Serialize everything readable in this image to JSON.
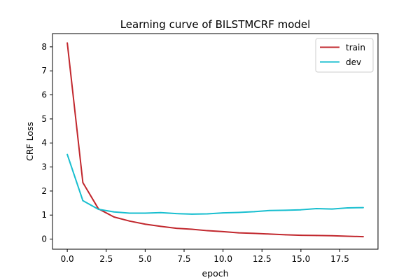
{
  "chart_data": {
    "type": "line",
    "title": "Learning curve of BILSTMCRF model",
    "xlabel": "epoch",
    "ylabel": "CRF Loss",
    "xlim": [
      -0.95,
      19.95
    ],
    "ylim": [
      -0.42,
      8.55
    ],
    "xticks": [
      0.0,
      2.5,
      5.0,
      7.5,
      10.0,
      12.5,
      15.0,
      17.5
    ],
    "xtick_labels": [
      "0.0",
      "2.5",
      "5.0",
      "7.5",
      "10.0",
      "12.5",
      "15.0",
      "17.5"
    ],
    "yticks": [
      0,
      1,
      2,
      3,
      4,
      5,
      6,
      7,
      8
    ],
    "ytick_labels": [
      "0",
      "1",
      "2",
      "3",
      "4",
      "5",
      "6",
      "7",
      "8"
    ],
    "grid": false,
    "legend_position": "top-right",
    "x": [
      0,
      1,
      2,
      3,
      4,
      5,
      6,
      7,
      8,
      9,
      10,
      11,
      12,
      13,
      14,
      15,
      16,
      17,
      18,
      19
    ],
    "series": [
      {
        "name": "train",
        "color": "#c1272d",
        "values": [
          8.16,
          2.35,
          1.26,
          0.92,
          0.75,
          0.62,
          0.53,
          0.45,
          0.41,
          0.35,
          0.31,
          0.26,
          0.24,
          0.21,
          0.18,
          0.16,
          0.15,
          0.14,
          0.12,
          0.1
        ]
      },
      {
        "name": "dev",
        "color": "#17becf",
        "values": [
          3.52,
          1.6,
          1.24,
          1.13,
          1.08,
          1.08,
          1.1,
          1.06,
          1.04,
          1.05,
          1.09,
          1.11,
          1.14,
          1.19,
          1.2,
          1.22,
          1.27,
          1.25,
          1.3,
          1.31
        ]
      }
    ]
  }
}
